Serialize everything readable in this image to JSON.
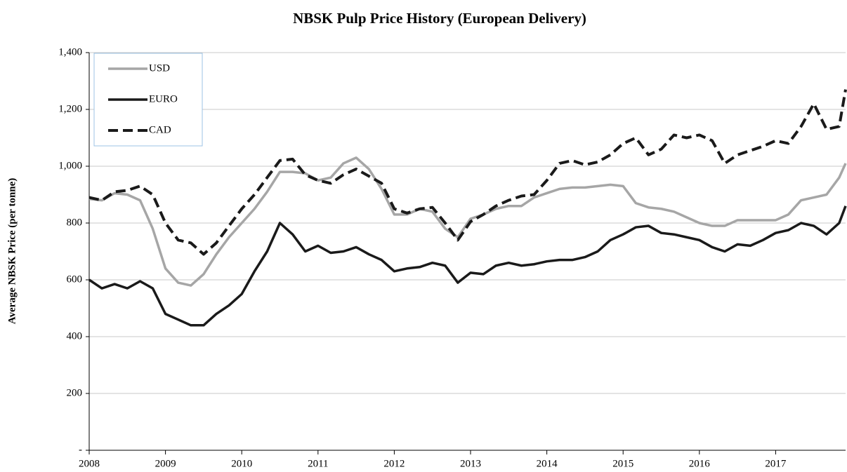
{
  "chart_data": {
    "type": "line",
    "title": "NBSK Pulp Price History (European Delivery)",
    "y_label": "Average NBSK Price (per tonne)",
    "x": [
      2008,
      2008.167,
      2008.333,
      2008.5,
      2008.667,
      2008.833,
      2009,
      2009.167,
      2009.333,
      2009.5,
      2009.667,
      2009.833,
      2010,
      2010.167,
      2010.333,
      2010.5,
      2010.667,
      2010.833,
      2011,
      2011.167,
      2011.333,
      2011.5,
      2011.667,
      2011.833,
      2012,
      2012.167,
      2012.333,
      2012.5,
      2012.667,
      2012.833,
      2013,
      2013.167,
      2013.333,
      2013.5,
      2013.667,
      2013.833,
      2014,
      2014.167,
      2014.333,
      2014.5,
      2014.667,
      2014.833,
      2015,
      2015.167,
      2015.333,
      2015.5,
      2015.667,
      2015.833,
      2016,
      2016.167,
      2016.333,
      2016.5,
      2016.667,
      2016.833,
      2017,
      2017.167,
      2017.333,
      2017.5,
      2017.667,
      2017.833,
      2017.917
    ],
    "series": [
      {
        "name": "USD",
        "color": "#a6a6a6",
        "dashed": false,
        "values": [
          885,
          880,
          905,
          900,
          880,
          780,
          640,
          590,
          580,
          620,
          690,
          750,
          800,
          850,
          910,
          980,
          980,
          975,
          950,
          960,
          1010,
          1030,
          990,
          920,
          830,
          830,
          850,
          840,
          780,
          750,
          815,
          830,
          850,
          860,
          860,
          890,
          905,
          920,
          925,
          925,
          930,
          935,
          930,
          870,
          855,
          850,
          840,
          820,
          800,
          790,
          790,
          810,
          810,
          810,
          810,
          830,
          880,
          890,
          900,
          960,
          1010
        ]
      },
      {
        "name": "EURO",
        "color": "#1a1a1a",
        "dashed": false,
        "values": [
          600,
          570,
          585,
          570,
          595,
          570,
          480,
          460,
          440,
          440,
          480,
          510,
          550,
          630,
          700,
          800,
          760,
          700,
          720,
          695,
          700,
          715,
          690,
          670,
          630,
          640,
          645,
          660,
          650,
          590,
          625,
          620,
          650,
          660,
          650,
          655,
          665,
          670,
          670,
          680,
          700,
          740,
          760,
          785,
          790,
          765,
          760,
          750,
          740,
          715,
          700,
          725,
          720,
          740,
          765,
          775,
          800,
          790,
          760,
          800,
          860
        ]
      },
      {
        "name": "CAD",
        "color": "#1a1a1a",
        "dashed": true,
        "values": [
          890,
          880,
          910,
          915,
          930,
          900,
          800,
          740,
          730,
          690,
          730,
          790,
          850,
          900,
          960,
          1020,
          1025,
          970,
          950,
          940,
          970,
          990,
          965,
          940,
          850,
          835,
          850,
          855,
          800,
          740,
          805,
          830,
          860,
          880,
          895,
          900,
          950,
          1010,
          1020,
          1005,
          1015,
          1040,
          1080,
          1100,
          1040,
          1060,
          1110,
          1100,
          1110,
          1090,
          1010,
          1040,
          1055,
          1070,
          1090,
          1080,
          1140,
          1220,
          1130,
          1140,
          1270
        ]
      }
    ],
    "xlim": [
      2008,
      2017.917
    ],
    "xticks": [
      2008,
      2009,
      2010,
      2011,
      2012,
      2013,
      2014,
      2015,
      2016,
      2017
    ],
    "ylim": [
      0,
      1400
    ],
    "yticks": [
      {
        "value": 0,
        "label": "-"
      },
      200,
      400,
      600,
      800,
      {
        "value": 1000,
        "label": "1,000"
      },
      {
        "value": 1200,
        "label": "1,200"
      },
      {
        "value": 1400,
        "label": "1,400"
      }
    ],
    "grid": true,
    "legend": "upper left"
  }
}
